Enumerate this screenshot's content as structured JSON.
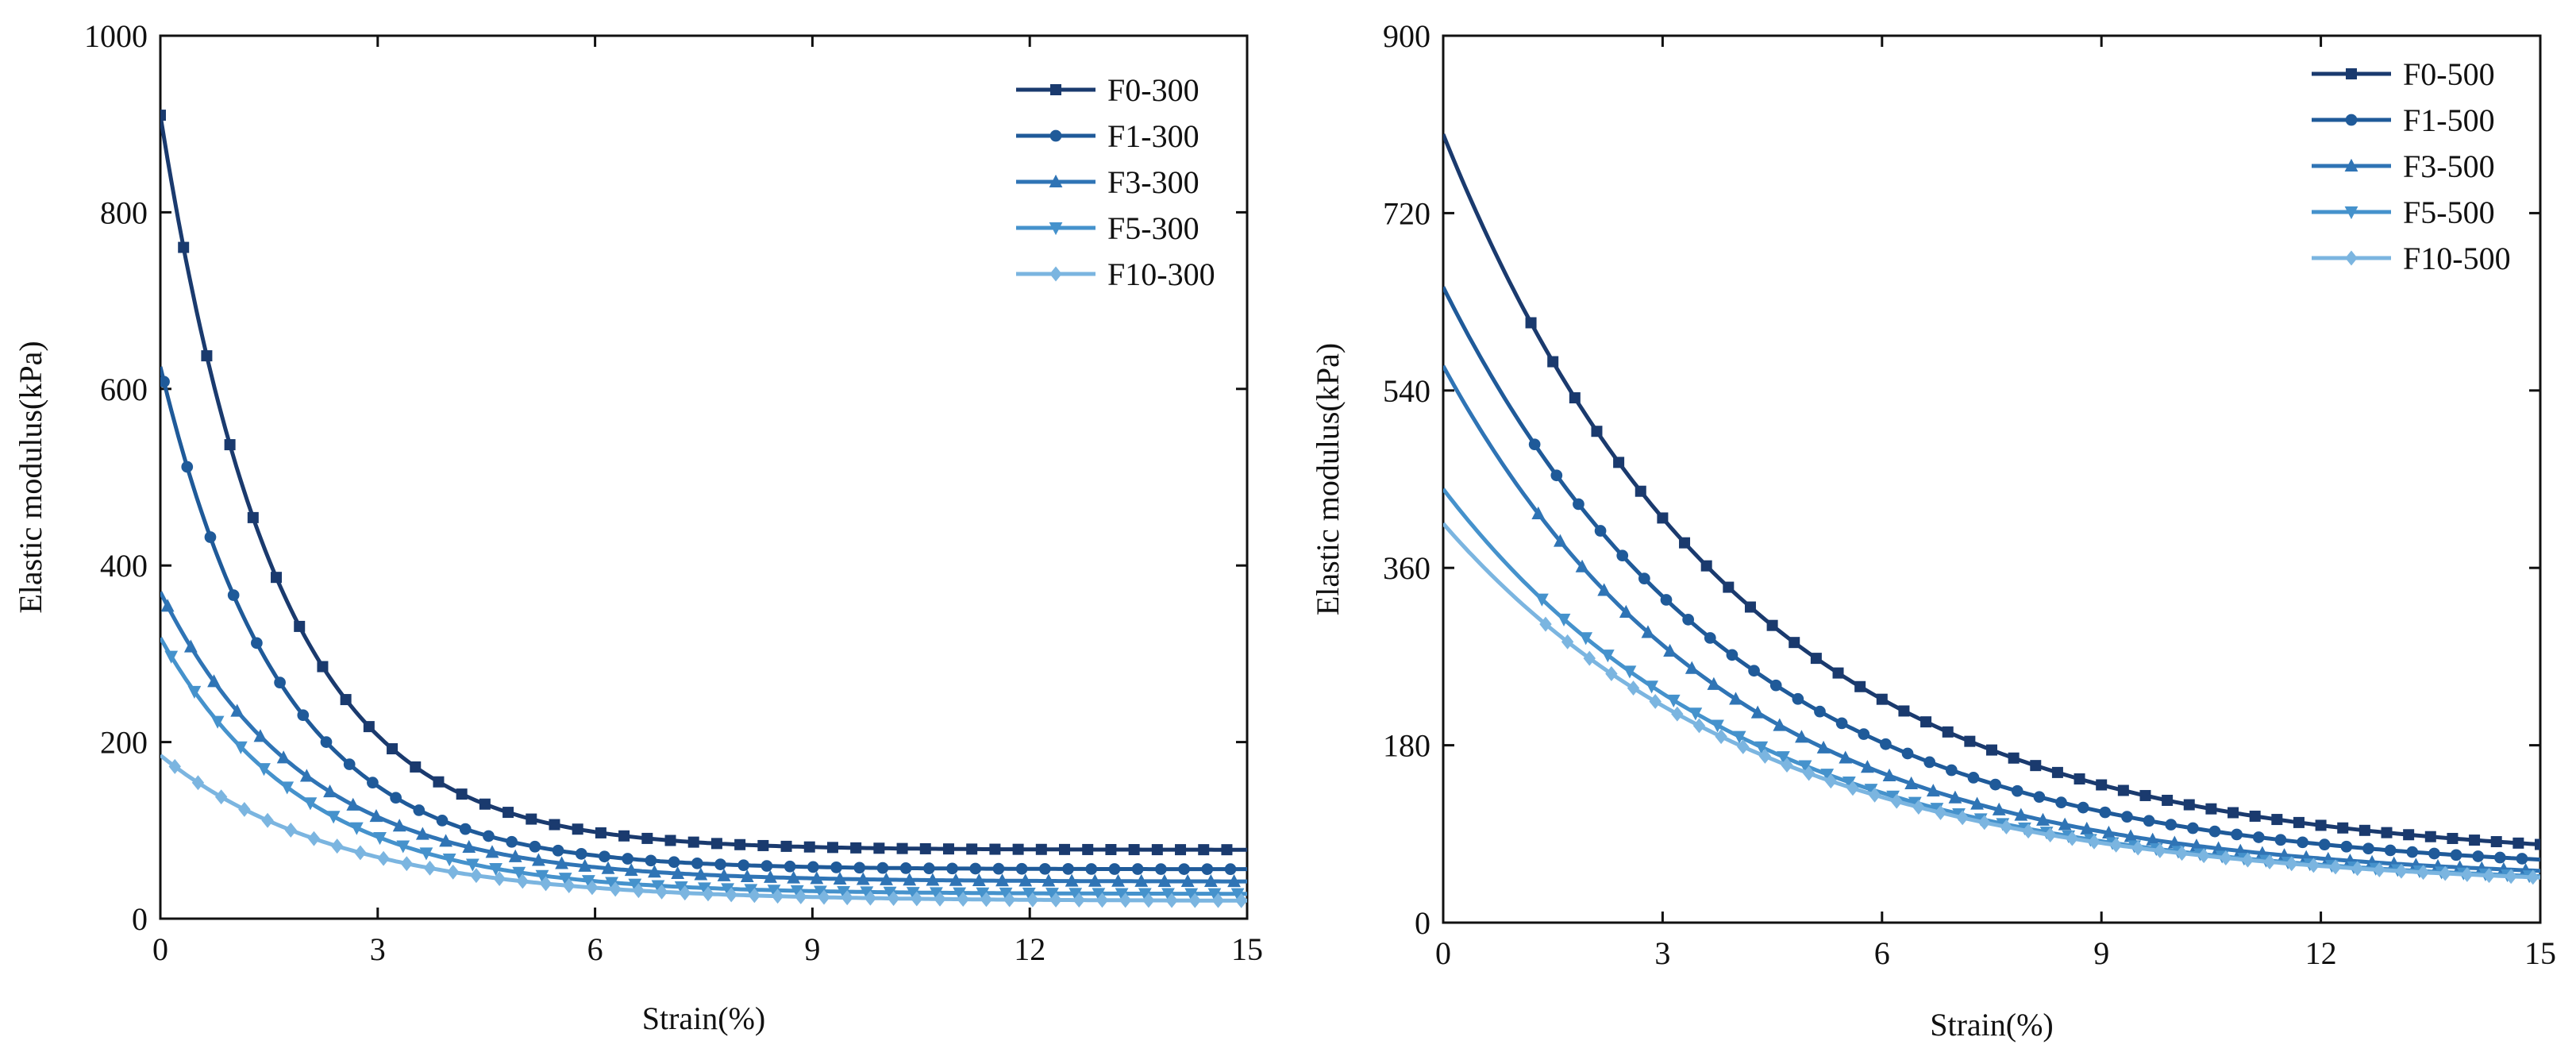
{
  "chart_data": [
    {
      "type": "line",
      "id": "left",
      "title": "",
      "xlabel": "Strain(%)",
      "ylabel": "Elastic modulus(kPa)",
      "xlim": [
        0,
        15
      ],
      "ylim": [
        0,
        1000
      ],
      "xticks": [
        0,
        3,
        6,
        9,
        12,
        15
      ],
      "yticks": [
        0,
        200,
        400,
        600,
        800,
        1000
      ],
      "grid": false,
      "legend_position": "top-right",
      "series": [
        {
          "name": "F0-300",
          "marker": "square",
          "color": "#1a3a6e",
          "y0": 910,
          "y_inf": 78,
          "k": 0.62
        },
        {
          "name": "F1-300",
          "marker": "circle",
          "color": "#1f5a99",
          "y0": 625,
          "y_inf": 56,
          "k": 0.6
        },
        {
          "name": "F3-300",
          "marker": "triangle-up",
          "color": "#2f74b5",
          "y0": 370,
          "y_inf": 42,
          "k": 0.5
        },
        {
          "name": "F5-300",
          "marker": "triangle-down",
          "color": "#4592cc",
          "y0": 318,
          "y_inf": 28,
          "k": 0.5
        },
        {
          "name": "F10-300",
          "marker": "diamond",
          "color": "#7bb5e0",
          "y0": 185,
          "y_inf": 20,
          "k": 0.4
        }
      ]
    },
    {
      "type": "line",
      "id": "right",
      "title": "",
      "xlabel": "Strain(%)",
      "ylabel": "Elastic modulus(kPa)",
      "xlim": [
        0,
        15
      ],
      "ylim": [
        0,
        900
      ],
      "xticks": [
        0,
        3,
        6,
        9,
        12,
        15
      ],
      "yticks": [
        0,
        180,
        360,
        540,
        720,
        900
      ],
      "grid": false,
      "legend_position": "top-right",
      "series": [
        {
          "name": "F0-500",
          "marker": "square",
          "color": "#1a3a6e",
          "y0": 800,
          "y_inf": 62,
          "k": 0.25
        },
        {
          "name": "F1-500",
          "marker": "circle",
          "color": "#1f5a99",
          "y0": 645,
          "y_inf": 50,
          "k": 0.25
        },
        {
          "name": "F3-500",
          "marker": "triangle-up",
          "color": "#2f74b5",
          "y0": 565,
          "y_inf": 42,
          "k": 0.26
        },
        {
          "name": "F5-500",
          "marker": "triangle-down",
          "color": "#4592cc",
          "y0": 440,
          "y_inf": 36,
          "k": 0.24
        },
        {
          "name": "F10-500",
          "marker": "diamond",
          "color": "#7bb5e0",
          "y0": 405,
          "y_inf": 34,
          "k": 0.23
        }
      ]
    }
  ]
}
